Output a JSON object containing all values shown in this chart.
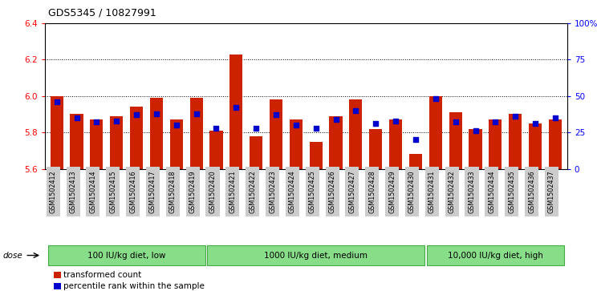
{
  "title": "GDS5345 / 10827991",
  "samples": [
    "GSM1502412",
    "GSM1502413",
    "GSM1502414",
    "GSM1502415",
    "GSM1502416",
    "GSM1502417",
    "GSM1502418",
    "GSM1502419",
    "GSM1502420",
    "GSM1502421",
    "GSM1502422",
    "GSM1502423",
    "GSM1502424",
    "GSM1502425",
    "GSM1502426",
    "GSM1502427",
    "GSM1502428",
    "GSM1502429",
    "GSM1502430",
    "GSM1502431",
    "GSM1502432",
    "GSM1502433",
    "GSM1502434",
    "GSM1502435",
    "GSM1502436",
    "GSM1502437"
  ],
  "bar_values": [
    6.0,
    5.9,
    5.87,
    5.89,
    5.94,
    5.99,
    5.87,
    5.99,
    5.81,
    6.23,
    5.78,
    5.98,
    5.87,
    5.75,
    5.89,
    5.98,
    5.82,
    5.87,
    5.68,
    6.0,
    5.91,
    5.82,
    5.87,
    5.9,
    5.85,
    5.87
  ],
  "percentile_values": [
    46,
    35,
    32,
    33,
    37,
    38,
    30,
    38,
    28,
    42,
    28,
    37,
    30,
    28,
    34,
    40,
    31,
    33,
    20,
    48,
    32,
    26,
    32,
    36,
    31,
    35
  ],
  "ymin": 5.6,
  "ymax": 6.4,
  "yticks": [
    5.6,
    5.8,
    6.0,
    6.2,
    6.4
  ],
  "right_yticks": [
    0,
    25,
    50,
    75,
    100
  ],
  "right_yticklabels": [
    "0",
    "25",
    "50",
    "75",
    "100%"
  ],
  "bar_color": "#cc2200",
  "dot_color": "#0000cc",
  "bg_color": "#ffffff",
  "plot_bg_color": "#ffffff",
  "groups": [
    {
      "label": "100 IU/kg diet, low",
      "start": 0,
      "end": 8
    },
    {
      "label": "1000 IU/kg diet, medium",
      "start": 8,
      "end": 19
    },
    {
      "label": "10,000 IU/kg diet, high",
      "start": 19,
      "end": 26
    }
  ],
  "group_color": "#88dd88",
  "group_border_color": "#44aa44",
  "tick_bg_color": "#cccccc",
  "dose_label": "dose",
  "legend_items": [
    {
      "label": "transformed count",
      "color": "#cc2200"
    },
    {
      "label": "percentile rank within the sample",
      "color": "#0000cc"
    }
  ]
}
